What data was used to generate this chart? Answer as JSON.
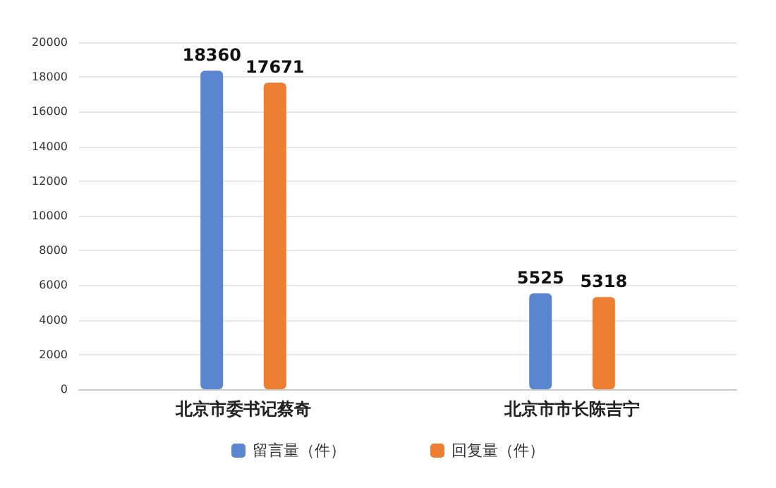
{
  "chart_data": {
    "type": "bar",
    "categories": [
      "北京市委书记蔡奇",
      "北京市市长陈吉宁"
    ],
    "series": [
      {
        "name": "留言量（件）",
        "color": "#5a86d0",
        "values": [
          18360,
          5525
        ]
      },
      {
        "name": "回复量（件）",
        "color": "#ed7d31",
        "values": [
          17671,
          5318
        ]
      }
    ],
    "ylim": [
      0,
      20000
    ],
    "yticks": [
      0,
      2000,
      4000,
      6000,
      8000,
      10000,
      12000,
      14000,
      16000,
      18000,
      20000
    ],
    "grid": "y",
    "legend": "bottom",
    "data_labels": true
  }
}
